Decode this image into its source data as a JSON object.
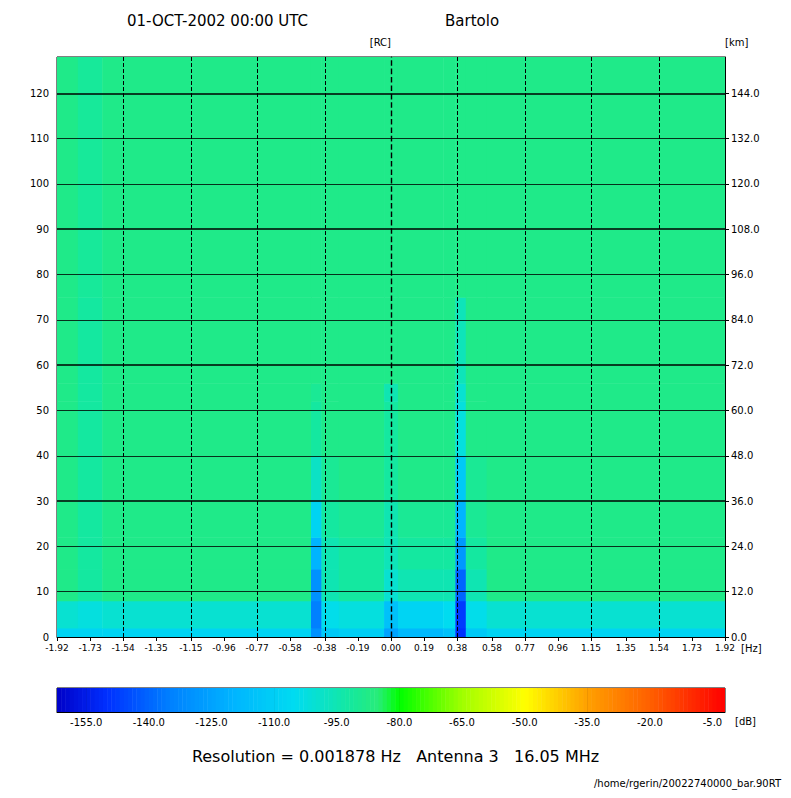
{
  "chart_data": {
    "type": "heatmap",
    "title": "01-OCT-2002 00:00 UTC",
    "subtitle": "Bartolo",
    "xlabel": "[Hz]",
    "ylabel": "[RC]",
    "y2label": "[km]",
    "xlim": [
      -1.92,
      1.92
    ],
    "xticks": [
      -1.92,
      -1.73,
      -1.54,
      -1.35,
      -1.15,
      -0.96,
      -0.77,
      -0.58,
      -0.38,
      -0.19,
      {
        "value": 0,
        "label": "0.00"
      },
      0.19,
      0.38,
      0.58,
      0.77,
      0.96,
      1.15,
      1.35,
      1.54,
      1.73,
      1.92
    ],
    "ylim": [
      0,
      128
    ],
    "yticks": [
      0,
      10,
      20,
      30,
      40,
      50,
      60,
      70,
      80,
      90,
      100,
      110,
      120
    ],
    "y2lim": [
      0,
      153.6
    ],
    "y2ticks": [
      {
        "value": 0,
        "label": "0.0"
      },
      {
        "value": 12,
        "label": "12.0"
      },
      {
        "value": 24,
        "label": "24.0"
      },
      {
        "value": 36,
        "label": "36.0"
      },
      {
        "value": 48,
        "label": "48.0"
      },
      {
        "value": 60,
        "label": "60.0"
      },
      {
        "value": 72,
        "label": "72.0"
      },
      {
        "value": 84,
        "label": "84.0"
      },
      {
        "value": 96,
        "label": "96.0"
      },
      {
        "value": 108,
        "label": "108.0"
      },
      {
        "value": 120,
        "label": "120.0"
      },
      {
        "value": 132,
        "label": "132.0"
      },
      {
        "value": 144,
        "label": "144.0"
      }
    ],
    "grid": true,
    "x_edges": [
      -1.92,
      -1.8,
      -1.66,
      -0.46,
      -0.4,
      -0.3,
      -0.04,
      0.04,
      0.3,
      0.37,
      0.43,
      0.55,
      1.92
    ],
    "y_edges": [
      0,
      2,
      8,
      15,
      22,
      30,
      40,
      52,
      56,
      75,
      128
    ],
    "values": [
      [
        -108,
        -108,
        -108,
        -130,
        -112,
        -110,
        -125,
        -118,
        -115,
        -150,
        -112,
        -108
      ],
      [
        -100,
        -102,
        -100,
        -135,
        -104,
        -102,
        -115,
        -108,
        -105,
        -148,
        -104,
        -100
      ],
      [
        -88,
        -92,
        -88,
        -130,
        -95,
        -92,
        -100,
        -95,
        -95,
        -140,
        -95,
        -88
      ],
      [
        -88,
        -92,
        -88,
        -120,
        -95,
        -92,
        -96,
        -92,
        -92,
        -128,
        -92,
        -88
      ],
      [
        -88,
        -92,
        -88,
        -108,
        -92,
        -90,
        -95,
        -90,
        -90,
        -120,
        -90,
        -88
      ],
      [
        -88,
        -92,
        -88,
        -98,
        -90,
        -88,
        -92,
        -88,
        -88,
        -112,
        -90,
        -88
      ],
      [
        -88,
        -92,
        -88,
        -92,
        -88,
        -88,
        -92,
        -88,
        -88,
        -102,
        -88,
        -88
      ],
      [
        -88,
        -92,
        -88,
        -90,
        -88,
        -88,
        -95,
        -88,
        -88,
        -100,
        -88,
        -88
      ],
      [
        -88,
        -92,
        -88,
        -88,
        -88,
        -88,
        -88,
        -88,
        -88,
        -96,
        -88,
        -88
      ],
      [
        -88,
        -91,
        -88,
        -88,
        -88,
        -88,
        -88,
        -88,
        -88,
        -88,
        -88,
        -88
      ]
    ],
    "colorbar": {
      "label": "[dB]",
      "range": [
        -162,
        -2
      ],
      "ticks": [
        {
          "value": -155,
          "label": "-155.0"
        },
        {
          "value": -140,
          "label": "-140.0"
        },
        {
          "value": -125,
          "label": "-125.0"
        },
        {
          "value": -110,
          "label": "-110.0"
        },
        {
          "value": -95,
          "label": "-95.0"
        },
        {
          "value": -80,
          "label": "-80.0"
        },
        {
          "value": -65,
          "label": "-65.0"
        },
        {
          "value": -50,
          "label": "-50.0"
        },
        {
          "value": -35,
          "label": "-35.0"
        },
        {
          "value": -20,
          "label": "-20.0"
        },
        {
          "value": -5,
          "label": "-5.0"
        }
      ]
    },
    "annotations": [
      "Resolution = 0.001878 Hz   Antenna 3   16.05 MHz",
      "/home/rgerin/20022740000_bar.90RT"
    ]
  }
}
